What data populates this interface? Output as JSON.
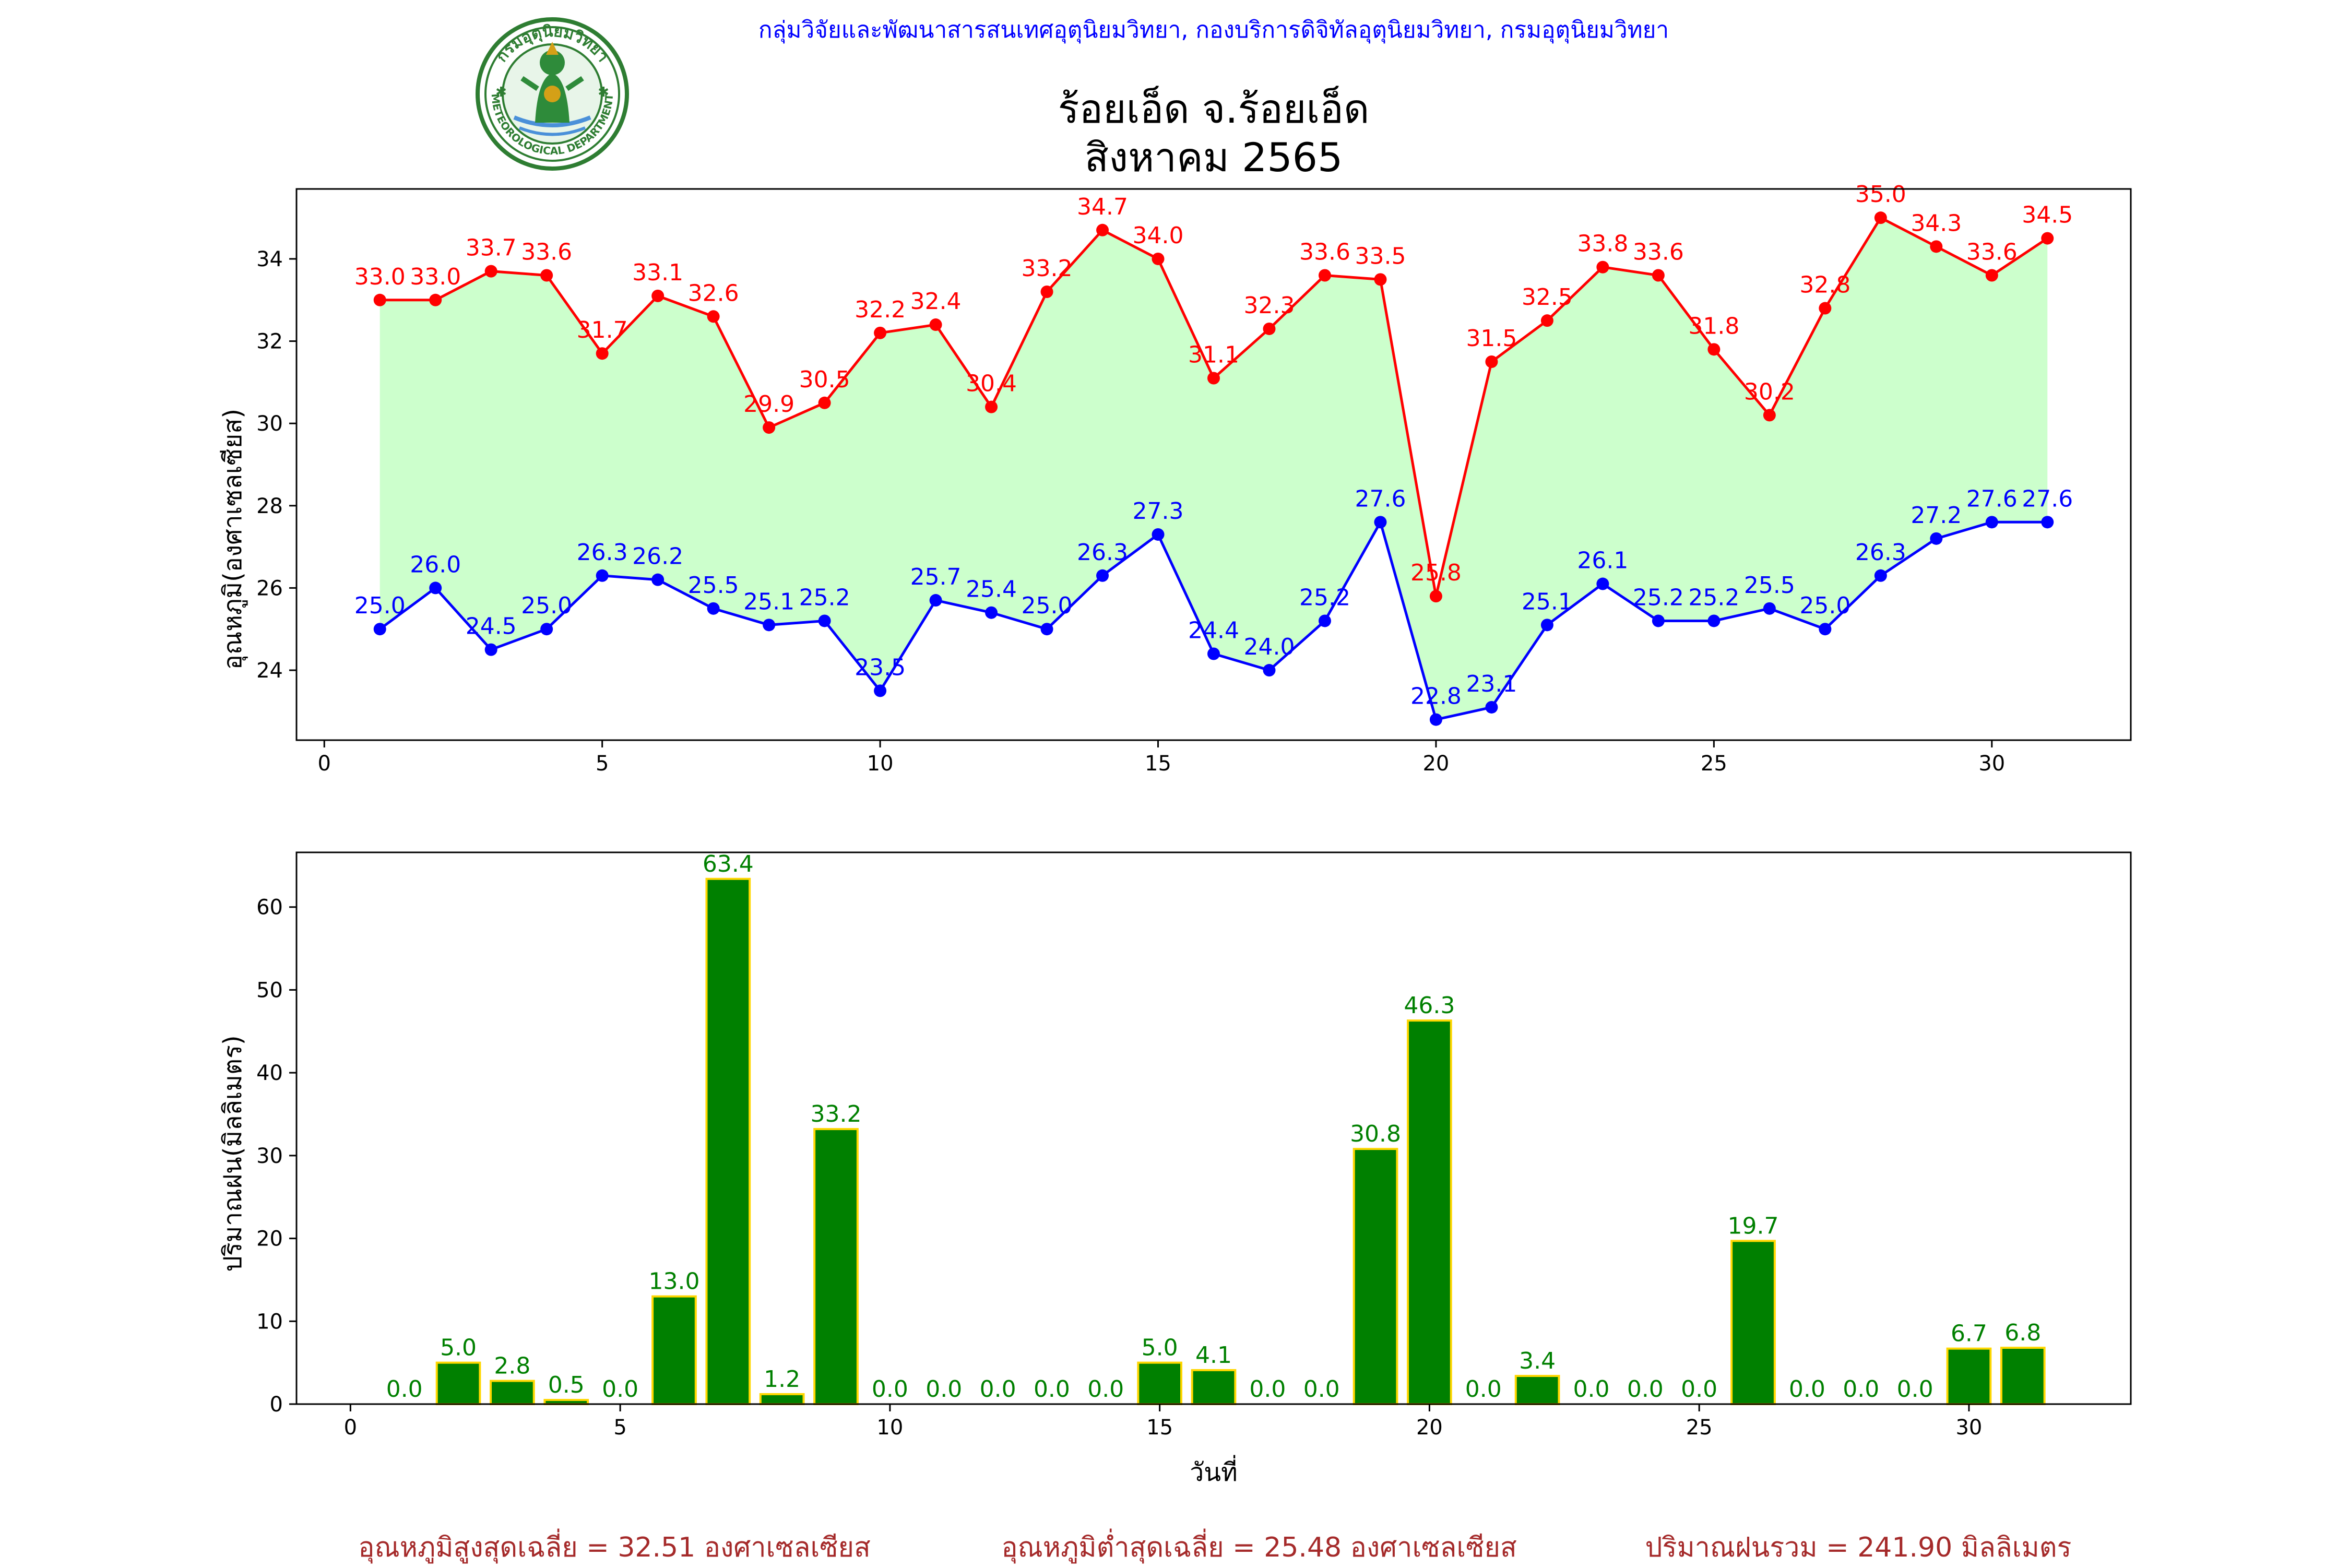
{
  "header": {
    "agency": "กลุ่มวิจัยและพัฒนาสารสนเทศอุตุนิยมวิทยา, กองบริการดิจิทัลอุตุนิยมวิทยา, กรมอุตุนิยมวิทยา",
    "title_line1": "ร้อยเอ็ด จ.ร้อยเอ็ด",
    "title_line2": "สิงหาคม 2565",
    "logo": {
      "top_text": "กรมอุตุนิยมวิทยา",
      "bottom_text": "METEOROLOGICAL DEPARTMENT"
    }
  },
  "footer": {
    "avg_max": "อุณหภูมิสูงสุดเฉลี่ย = 32.51 องศาเซลเซียส",
    "avg_min": "อุณหภูมิต่ำสุดเฉลี่ย = 25.48 องศาเซลเซียส",
    "total_rain": "ปริมาณฝนรวม = 241.90 มิลลิเมตร"
  },
  "colors": {
    "max_series": "#ff0000",
    "min_series": "#0000ff",
    "fill": "#ccffcc",
    "bar": "#008000",
    "bar_edge": "#ffd700",
    "bar_label": "#008000",
    "agency_text": "#0000ff",
    "footer_text": "#a52a2a"
  },
  "chart_data": [
    {
      "type": "line",
      "ylabel": "อุณหภูมิ(องศาเซลเซียส)",
      "xlim": [
        -0.5,
        32.5
      ],
      "ylim": [
        22.3,
        35.7
      ],
      "xticks": [
        0,
        5,
        10,
        15,
        20,
        25,
        30
      ],
      "yticks": [
        24,
        26,
        28,
        30,
        32,
        34
      ],
      "x": [
        1,
        2,
        3,
        4,
        5,
        6,
        7,
        8,
        9,
        10,
        11,
        12,
        13,
        14,
        15,
        16,
        17,
        18,
        19,
        20,
        21,
        22,
        23,
        24,
        25,
        26,
        27,
        28,
        29,
        30,
        31
      ],
      "series": [
        {
          "key": "max",
          "values": [
            33.0,
            33.0,
            33.7,
            33.6,
            31.7,
            33.1,
            32.6,
            29.9,
            30.5,
            32.2,
            32.4,
            30.4,
            33.2,
            34.7,
            34.0,
            31.1,
            32.3,
            33.6,
            33.5,
            25.8,
            31.5,
            32.5,
            33.8,
            33.6,
            31.8,
            30.2,
            32.8,
            35.0,
            34.3,
            33.6,
            34.5
          ]
        },
        {
          "key": "min",
          "values": [
            25.0,
            26.0,
            24.5,
            25.0,
            26.3,
            26.2,
            25.5,
            25.1,
            25.2,
            23.5,
            25.7,
            25.4,
            25.0,
            26.3,
            27.3,
            24.4,
            24.0,
            25.2,
            27.6,
            22.8,
            23.1,
            25.1,
            26.1,
            25.2,
            25.2,
            25.5,
            25.0,
            26.3,
            27.2,
            27.6,
            27.6
          ]
        }
      ]
    },
    {
      "type": "bar",
      "ylabel": "ปริมาณฝน(มิลลิเมตร)",
      "xlabel": "วันที่",
      "xlim": [
        -1,
        33
      ],
      "ylim": [
        0,
        66.6
      ],
      "xticks": [
        0,
        5,
        10,
        15,
        20,
        25,
        30
      ],
      "yticks": [
        0,
        10,
        20,
        30,
        40,
        50,
        60
      ],
      "x": [
        1,
        2,
        3,
        4,
        5,
        6,
        7,
        8,
        9,
        10,
        11,
        12,
        13,
        14,
        15,
        16,
        17,
        18,
        19,
        20,
        21,
        22,
        23,
        24,
        25,
        26,
        27,
        28,
        29,
        30,
        31
      ],
      "values": [
        0.0,
        5.0,
        2.8,
        0.5,
        0.0,
        13.0,
        63.4,
        1.2,
        33.2,
        0.0,
        0.0,
        0.0,
        0.0,
        0.0,
        5.0,
        4.1,
        0.0,
        0.0,
        30.8,
        46.3,
        0.0,
        3.4,
        0.0,
        0.0,
        0.0,
        19.7,
        0.0,
        0.0,
        0.0,
        6.7,
        6.8
      ]
    }
  ]
}
